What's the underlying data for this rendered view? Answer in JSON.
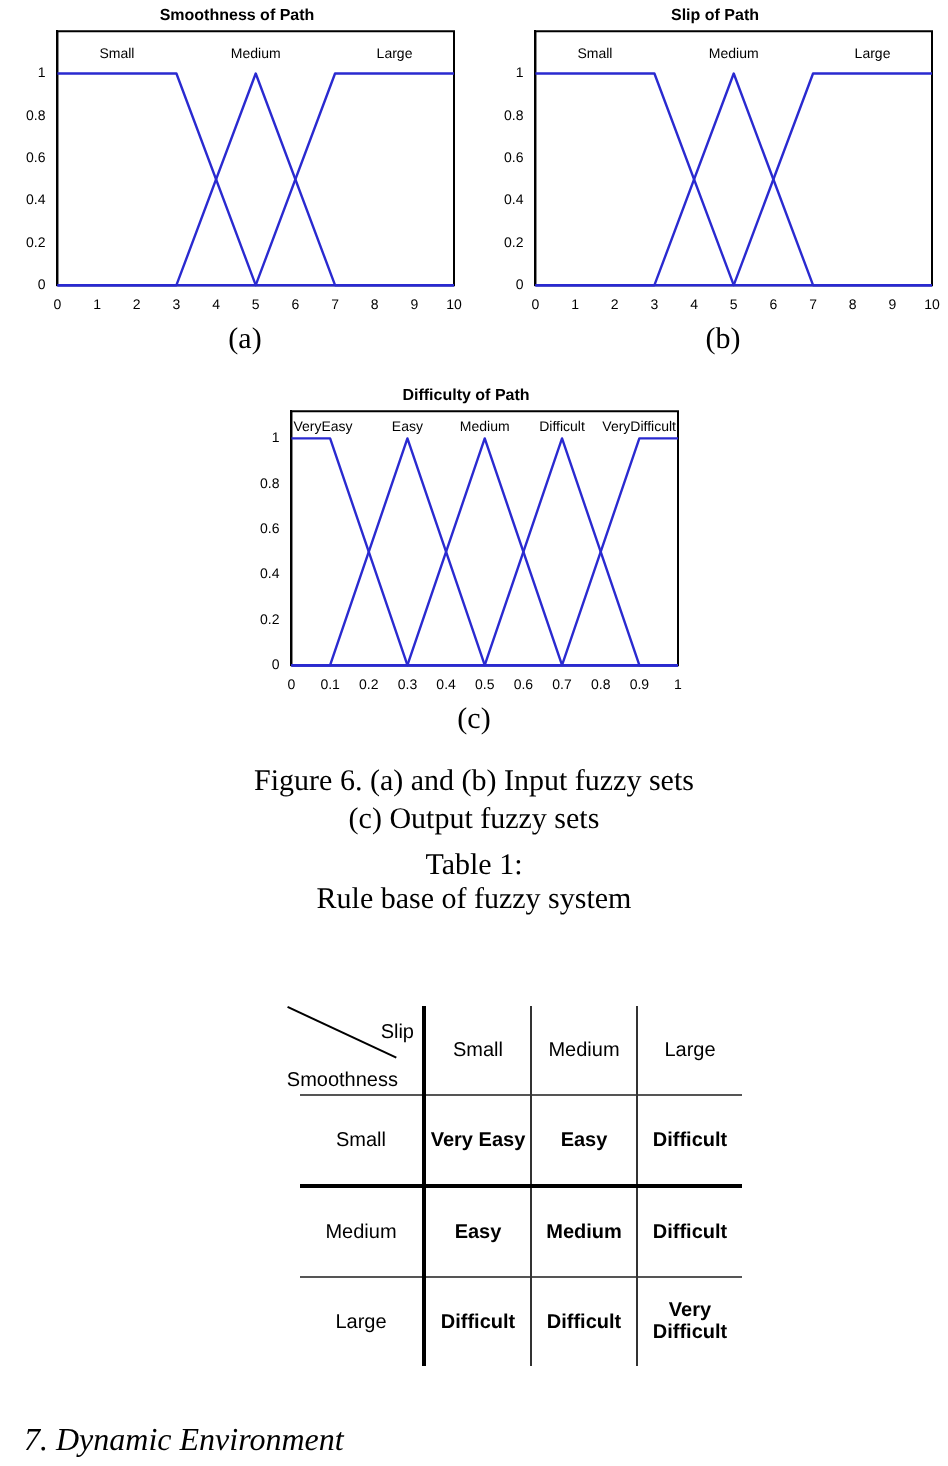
{
  "chart_data": [
    {
      "type": "line",
      "title": "Smoothness of Path",
      "xlim": [
        0,
        10
      ],
      "ylim": [
        0,
        1.2
      ],
      "xticks": [
        0,
        1,
        2,
        3,
        4,
        5,
        6,
        7,
        8,
        9,
        10
      ],
      "yticks": [
        0,
        0.2,
        0.4,
        0.6,
        0.8,
        1
      ],
      "grid": false,
      "legend": false,
      "marker": "none",
      "line_style": "solid",
      "annotations": [
        "(a)"
      ],
      "series": [
        {
          "name": "Small",
          "color": "#2a2ad0",
          "x": [
            0,
            3,
            5,
            10
          ],
          "values": [
            1,
            1,
            0,
            0
          ]
        },
        {
          "name": "Medium",
          "color": "#2a2ad0",
          "x": [
            0,
            3,
            5,
            7,
            10
          ],
          "values": [
            0,
            0,
            1,
            0,
            0
          ]
        },
        {
          "name": "Large",
          "color": "#2a2ad0",
          "x": [
            0,
            5,
            7,
            10
          ],
          "values": [
            0,
            0,
            1,
            1
          ]
        }
      ]
    },
    {
      "type": "line",
      "title": "Slip of Path",
      "xlim": [
        0,
        10
      ],
      "ylim": [
        0,
        1.2
      ],
      "xticks": [
        0,
        1,
        2,
        3,
        4,
        5,
        6,
        7,
        8,
        9,
        10
      ],
      "yticks": [
        0,
        0.2,
        0.4,
        0.6,
        0.8,
        1
      ],
      "grid": false,
      "legend": false,
      "marker": "none",
      "line_style": "solid",
      "annotations": [
        "(b)"
      ],
      "series": [
        {
          "name": "Small",
          "color": "#2a2ad0",
          "x": [
            0,
            3,
            5,
            10
          ],
          "values": [
            1,
            1,
            0,
            0
          ]
        },
        {
          "name": "Medium",
          "color": "#2a2ad0",
          "x": [
            0,
            3,
            5,
            7,
            10
          ],
          "values": [
            0,
            0,
            1,
            0,
            0
          ]
        },
        {
          "name": "Large",
          "color": "#2a2ad0",
          "x": [
            0,
            5,
            7,
            10
          ],
          "values": [
            0,
            0,
            1,
            1
          ]
        }
      ]
    },
    {
      "type": "line",
      "title": "Difficulty of Path",
      "xlim": [
        0,
        1
      ],
      "ylim": [
        0,
        1.12
      ],
      "xticks": [
        0,
        0.1,
        0.2,
        0.3,
        0.4,
        0.5,
        0.6,
        0.7,
        0.8,
        0.9,
        1
      ],
      "yticks": [
        0,
        0.2,
        0.4,
        0.6,
        0.8,
        1
      ],
      "grid": false,
      "legend": false,
      "marker": "none",
      "line_style": "solid",
      "annotations": [
        "(c)",
        "Figure 6. (a) and (b) Input fuzzy sets",
        "(c) Output fuzzy sets"
      ],
      "series": [
        {
          "name": "VeryEasy",
          "color": "#2a2ad0",
          "x": [
            0,
            0.1,
            0.3,
            1
          ],
          "values": [
            1,
            1,
            0,
            0
          ]
        },
        {
          "name": "Easy",
          "color": "#2a2ad0",
          "x": [
            0,
            0.1,
            0.3,
            0.5,
            1
          ],
          "values": [
            0,
            0,
            1,
            0,
            0
          ]
        },
        {
          "name": "Medium",
          "color": "#2a2ad0",
          "x": [
            0,
            0.3,
            0.5,
            0.7,
            1
          ],
          "values": [
            0,
            0,
            1,
            0,
            0
          ]
        },
        {
          "name": "Difficult",
          "color": "#2a2ad0",
          "x": [
            0,
            0.5,
            0.7,
            0.9,
            1
          ],
          "values": [
            0,
            0,
            1,
            0,
            0
          ]
        },
        {
          "name": "VeryDifficult",
          "color": "#2a2ad0",
          "x": [
            0,
            0.7,
            0.9,
            1
          ],
          "values": [
            0,
            0,
            1,
            1
          ]
        }
      ]
    },
    {
      "type": "other",
      "title": "Table 1:",
      "subtitle": "Rule base of fuzzy system",
      "annotations": [
        "Slip",
        "Smoothness",
        "Small",
        "Medium",
        "Large",
        "Small",
        "Very Easy",
        "Easy",
        "Difficult",
        "Medium",
        "Easy",
        "Medium",
        "Difficult",
        "Large",
        "Difficult",
        "Difficult",
        "Very Difficult",
        "7.   Dynamic Environment"
      ]
    }
  ]
}
